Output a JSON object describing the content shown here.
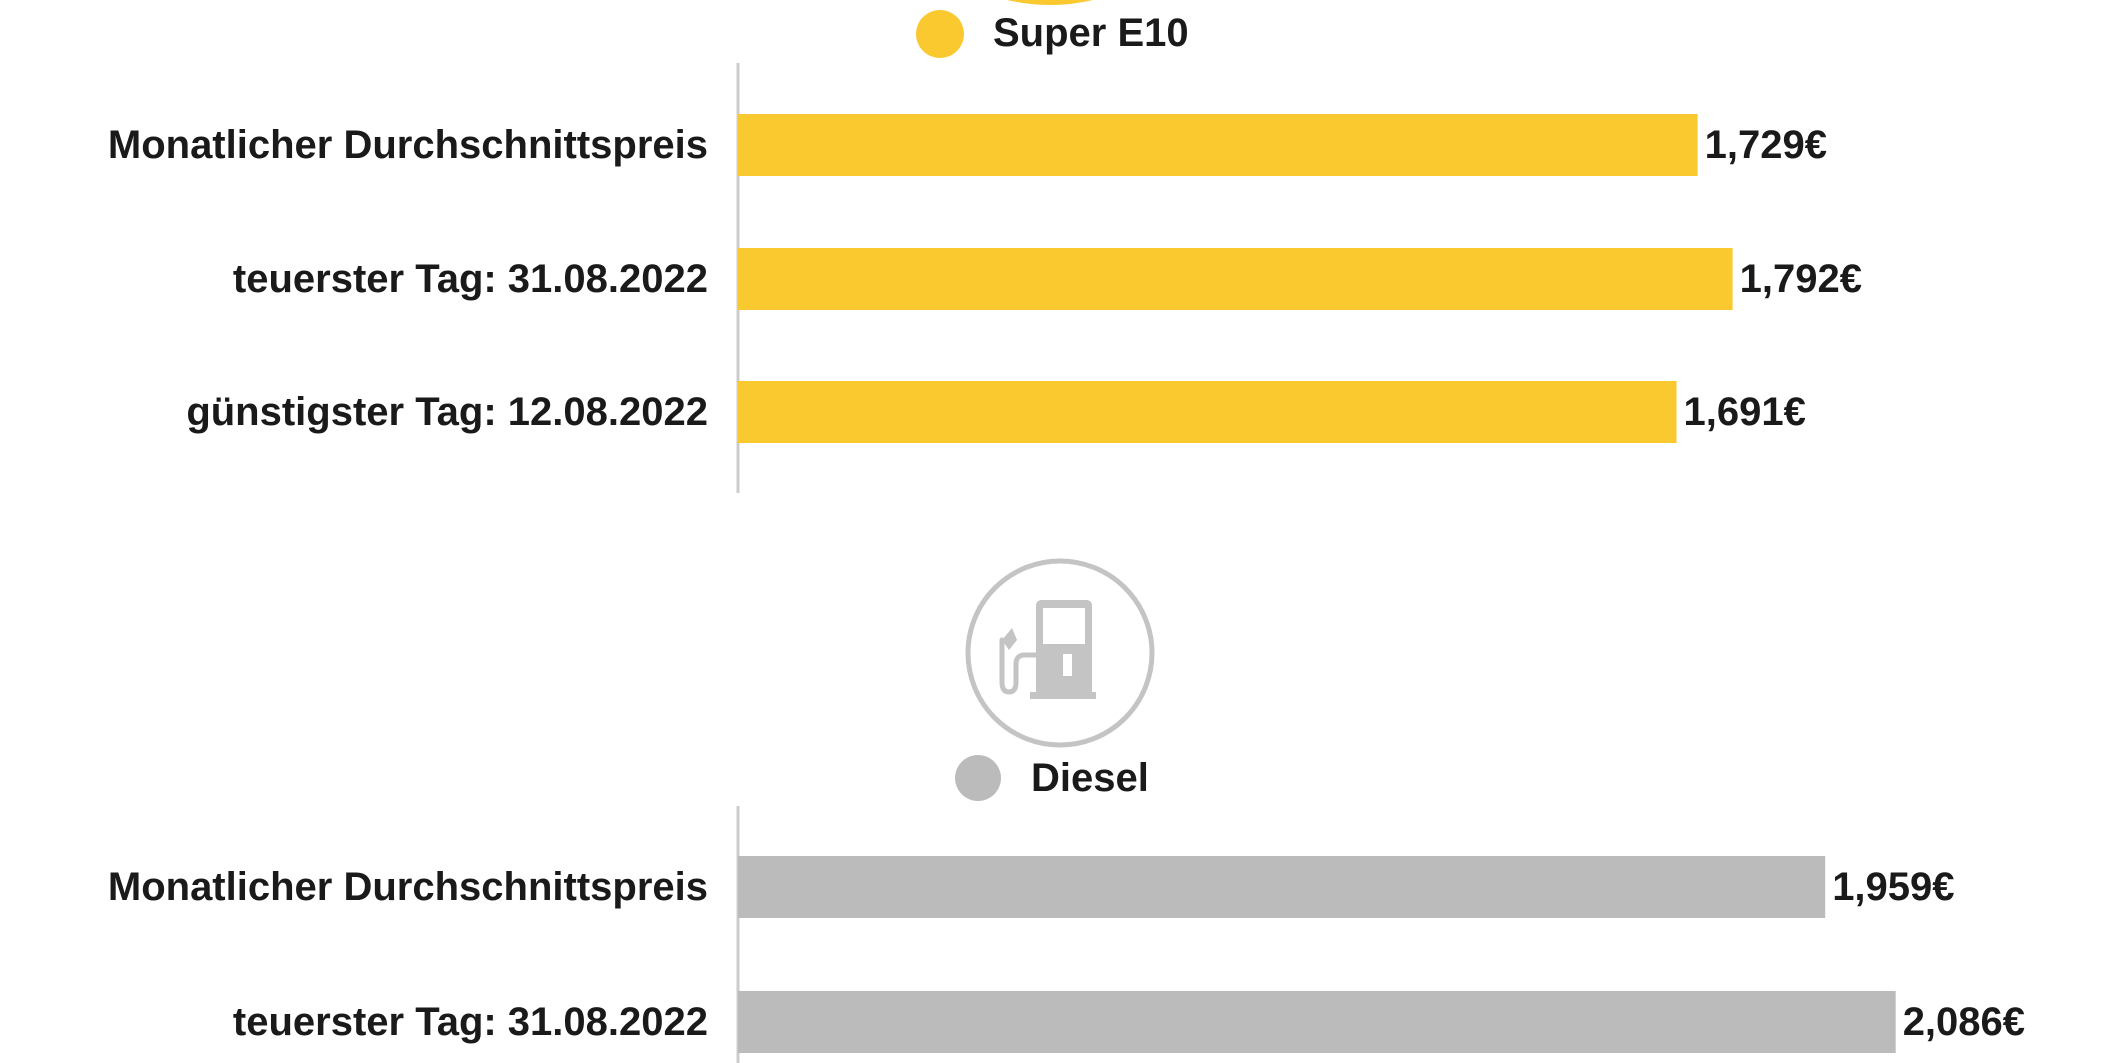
{
  "chart_data": [
    {
      "type": "bar",
      "orientation": "horizontal",
      "title": "Super E10",
      "color": "#F9C92F",
      "icon": "yellow-circle-icon",
      "categories": [
        "Monatlicher Durchschnittspreis",
        "teuerster Tag: 31.08.2022",
        "günstigster Tag: 12.08.2022"
      ],
      "values": [
        1.729,
        1.792,
        1.691
      ],
      "value_labels": [
        "1,729€",
        "1,792€",
        "1,691€"
      ],
      "unit": "€",
      "xlim": [
        0,
        2.25
      ]
    },
    {
      "type": "bar",
      "orientation": "horizontal",
      "title": "Diesel",
      "color": "#BBBBBB",
      "icon": "fuel-pump-icon",
      "categories": [
        "Monatlicher Durchschnittspreis",
        "teuerster Tag: 31.08.2022"
      ],
      "values": [
        1.959,
        2.086
      ],
      "value_labels": [
        "1,959€",
        "2,086€"
      ],
      "unit": "€",
      "xlim": [
        0,
        2.25
      ]
    }
  ]
}
